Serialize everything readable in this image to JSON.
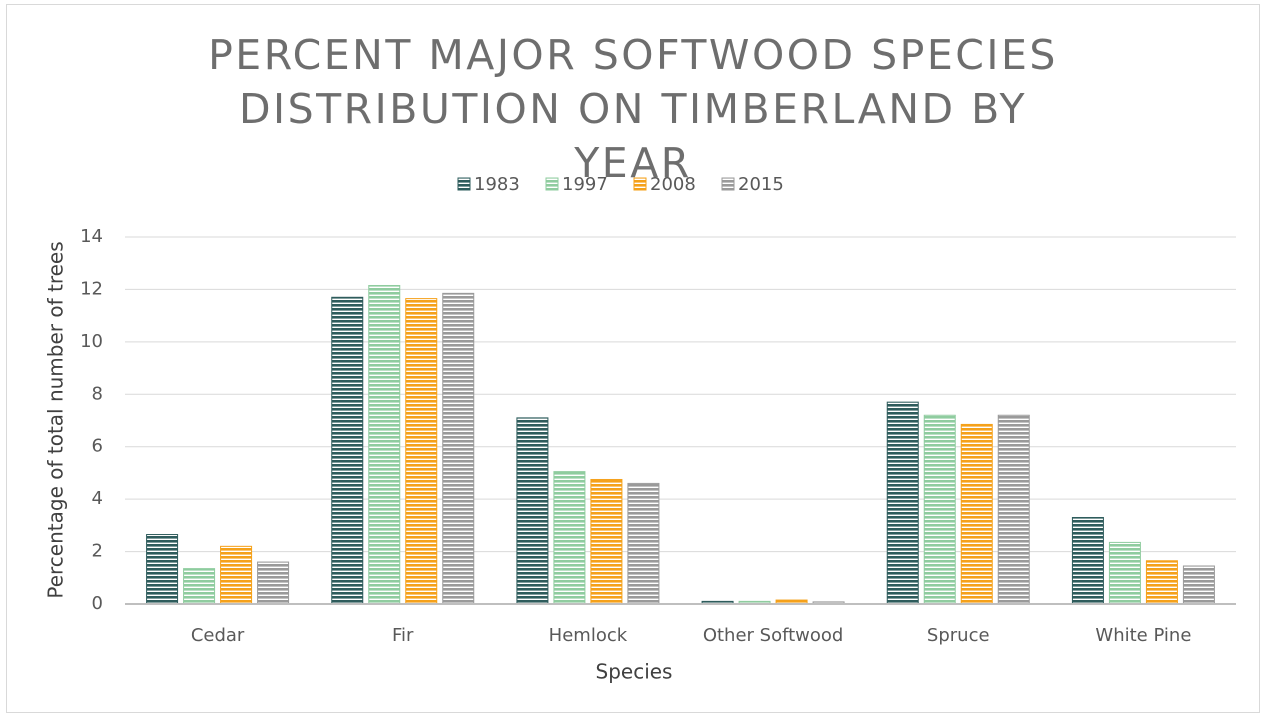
{
  "chart_data": {
    "type": "bar",
    "title": "PERCENT MAJOR SOFTWOOD SPECIES DISTRIBUTION ON TIMBERLAND BY YEAR",
    "x_label": "Species",
    "y_label": "Percentage of total number of trees",
    "categories": [
      "Cedar",
      "Fir",
      "Hemlock",
      "Other Softwood",
      "Spruce",
      "White Pine"
    ],
    "series": [
      {
        "name": "1983",
        "color": "#2e5c5c",
        "values": [
          2.65,
          11.7,
          7.1,
          0.1,
          7.7,
          3.3
        ]
      },
      {
        "name": "1997",
        "color": "#8fcc9f",
        "values": [
          1.35,
          12.15,
          5.05,
          0.1,
          7.2,
          2.35
        ]
      },
      {
        "name": "2008",
        "color": "#f5a11a",
        "values": [
          2.2,
          11.65,
          4.75,
          0.15,
          6.85,
          1.65
        ]
      },
      {
        "name": "2015",
        "color": "#9a9a9a",
        "values": [
          1.6,
          11.85,
          4.6,
          0.08,
          7.2,
          1.45
        ]
      }
    ],
    "ylim": [
      0,
      14
    ],
    "yticks": [
      0,
      2,
      4,
      6,
      8,
      10,
      12,
      14
    ],
    "grid": true,
    "legend": "top"
  }
}
